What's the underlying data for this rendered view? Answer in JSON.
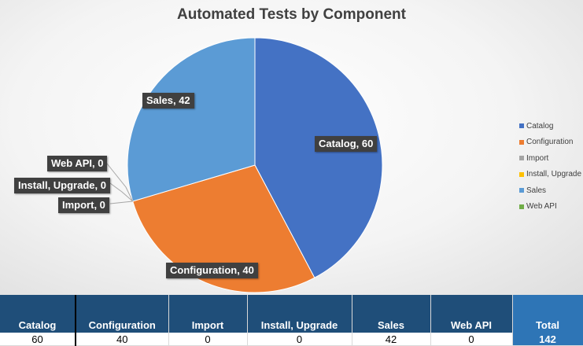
{
  "chart_data": {
    "type": "pie",
    "title": "Automated Tests by Component",
    "categories": [
      "Catalog",
      "Configuration",
      "Import",
      "Install, Upgrade",
      "Sales",
      "Web API"
    ],
    "values": [
      60,
      40,
      0,
      0,
      42,
      0
    ],
    "colors": [
      "#4472c4",
      "#ed7d31",
      "#a5a5a5",
      "#ffc000",
      "#5b9bd5",
      "#70ad47"
    ],
    "data_labels": [
      "Catalog, 60",
      "Configuration, 40",
      "Import, 0",
      "Install, Upgrade, 0",
      "Sales, 42",
      "Web API, 0"
    ],
    "legend": {
      "position": "right",
      "entries": [
        "Catalog",
        "Configuration",
        "Import",
        "Install, Upgrade",
        "Sales",
        "Web API"
      ]
    }
  },
  "table": {
    "headers": [
      "Catalog",
      "Configuration",
      "Import",
      "Install, Upgrade",
      "Sales",
      "Web API",
      "Total"
    ],
    "values": [
      "60",
      "40",
      "0",
      "0",
      "42",
      "0",
      "142"
    ],
    "header_color": "#1f4e79",
    "total_color": "#2e75b6"
  }
}
